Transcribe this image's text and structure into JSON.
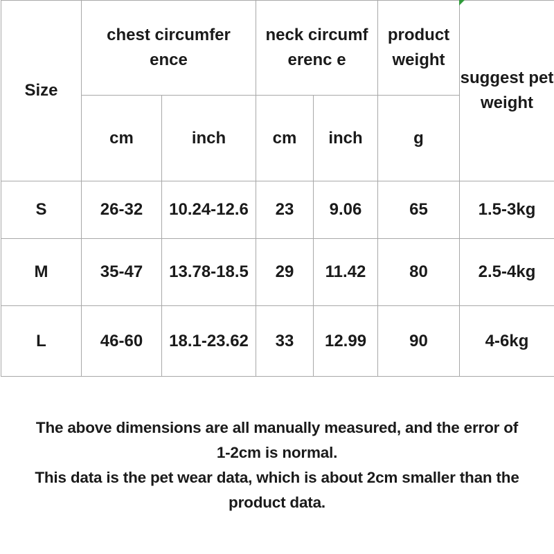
{
  "header": {
    "size": "Size",
    "chest": "chest circumference",
    "neck": "neck circumferenc e",
    "product_weight": "product weight",
    "suggest": "suggest pet weight",
    "units": [
      "cm",
      "inch",
      "cm",
      "inch",
      "g"
    ]
  },
  "rows": [
    {
      "size": "S",
      "chest_cm": "26-32",
      "chest_inch": "10.24-12.6",
      "neck_cm": "23",
      "neck_inch": "9.06",
      "weight_g": "65",
      "pet_weight": "1.5-3kg"
    },
    {
      "size": "M",
      "chest_cm": "35-47",
      "chest_inch": "13.78-18.5",
      "neck_cm": "29",
      "neck_inch": "11.42",
      "weight_g": "80",
      "pet_weight": "2.5-4kg"
    },
    {
      "size": "L",
      "chest_cm": "46-60",
      "chest_inch": "18.1-23.62",
      "neck_cm": "33",
      "neck_inch": "12.99",
      "weight_g": "90",
      "pet_weight": "4-6kg"
    }
  ],
  "notes": [
    "The above dimensions are all manually measured, and the error of",
    "1-2cm is normal.",
    "This data is the pet wear data, which is about 2cm smaller than the",
    "product data."
  ],
  "colors": {
    "border": "#a8a8a8",
    "text": "#1a1a1a",
    "corner_marker": "#2f9a3a"
  }
}
